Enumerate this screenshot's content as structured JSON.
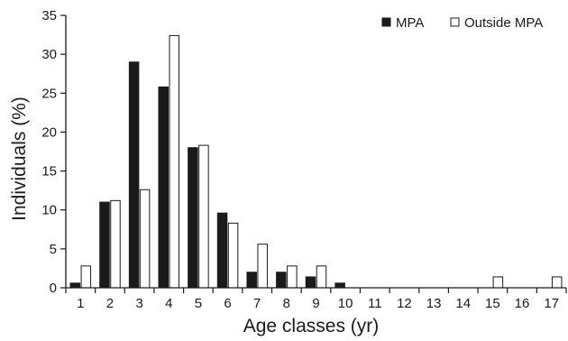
{
  "chart_data": {
    "type": "bar",
    "categories": [
      "1",
      "2",
      "3",
      "4",
      "5",
      "6",
      "7",
      "8",
      "9",
      "10",
      "11",
      "12",
      "13",
      "14",
      "15",
      "16",
      "17"
    ],
    "series": [
      {
        "name": "MPA",
        "color": "#1a1a1a",
        "fill": "solid",
        "values": [
          0.6,
          11.0,
          29.0,
          25.8,
          18.0,
          9.6,
          2.0,
          2.0,
          1.4,
          0.6,
          0,
          0,
          0,
          0,
          0,
          0,
          0
        ]
      },
      {
        "name": "Outside MPA",
        "color": "#ffffff",
        "fill": "open",
        "values": [
          2.8,
          11.2,
          12.6,
          32.4,
          18.3,
          8.3,
          5.6,
          2.8,
          2.8,
          0,
          0,
          0,
          0,
          0,
          1.4,
          0,
          1.4
        ]
      }
    ],
    "xlabel": "Age classes (yr)",
    "ylabel": "Individuals (%)",
    "ylim": [
      0,
      35
    ],
    "yticks": [
      "0",
      "5",
      "10",
      "15",
      "20",
      "25",
      "30",
      "35"
    ],
    "grid": false,
    "legend_position": "top-right"
  }
}
